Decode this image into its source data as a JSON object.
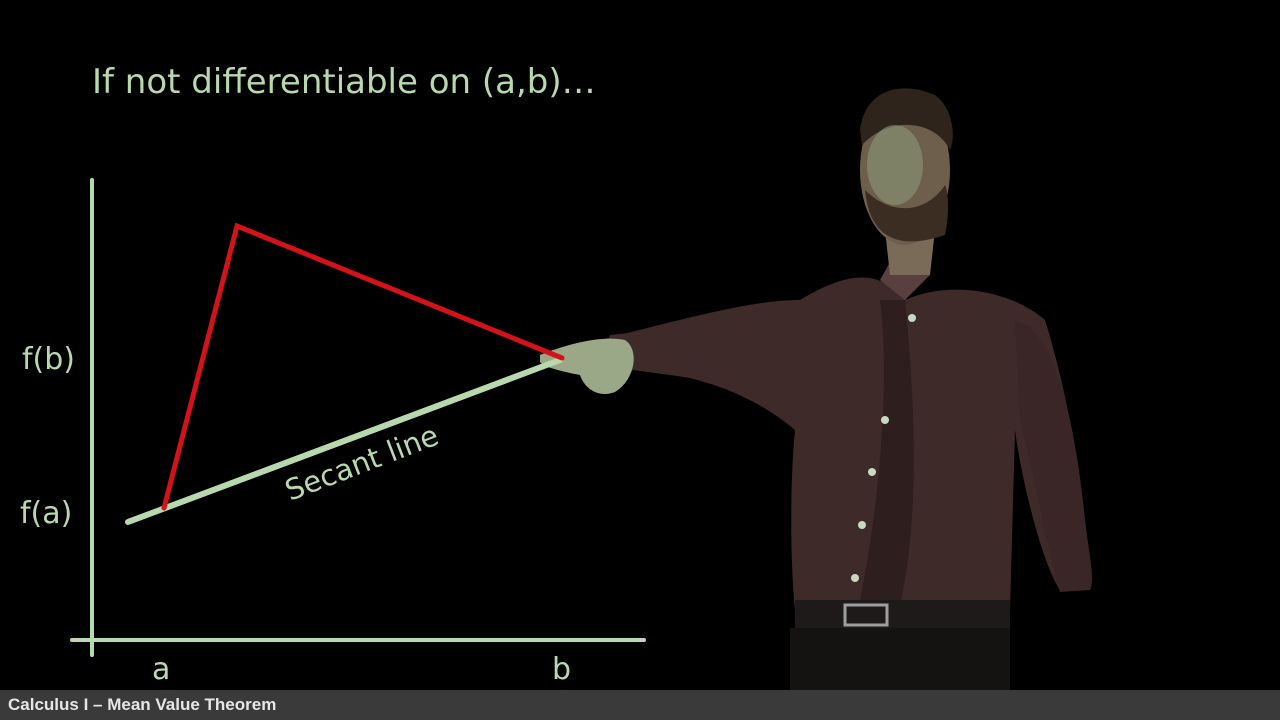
{
  "slide": {
    "title": "If not differentiable on (a,b)…",
    "labels": {
      "f_b": "f(b)",
      "f_a": "f(a)",
      "a": "a",
      "b": "b",
      "secant": "Secant line"
    }
  },
  "footer": {
    "text": "Calculus I – Mean Value Theorem"
  },
  "colors": {
    "chalk": "#b8d8ad",
    "curve": "#d4121a",
    "background": "#000000",
    "footer_bar": "#3a3a3a"
  }
}
